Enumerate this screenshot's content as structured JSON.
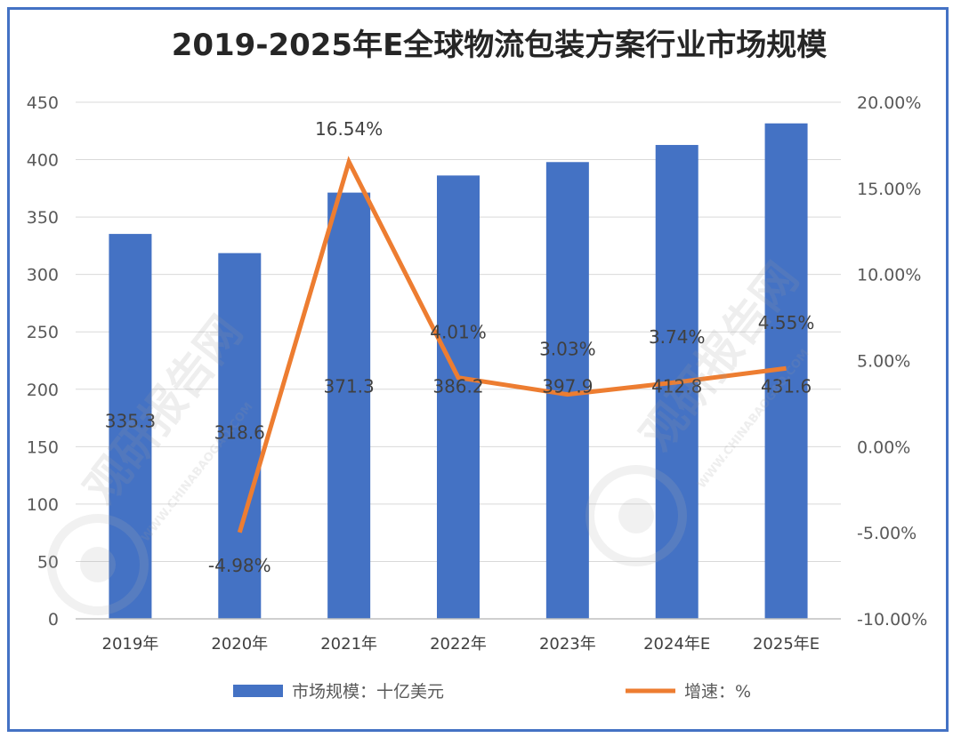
{
  "chart_data": {
    "type": "bar+line",
    "title": "2019-2025年E全球物流包装方案行业市场规模",
    "categories": [
      "2019年",
      "2020年",
      "2021年",
      "2022年",
      "2023年",
      "2024年E",
      "2025年E"
    ],
    "series": [
      {
        "name": "市场规模：十亿美元",
        "type": "bar",
        "axis": "left",
        "color": "#4472c4",
        "values": [
          335.3,
          318.6,
          371.3,
          386.2,
          397.9,
          412.8,
          431.6
        ],
        "labels": [
          "335.3",
          "318.6",
          "371.3",
          "386.2",
          "397.9",
          "412.8",
          "431.6"
        ]
      },
      {
        "name": "增速：%",
        "type": "line",
        "axis": "right",
        "color": "#ed7d31",
        "values": [
          null,
          -4.98,
          16.54,
          4.01,
          3.03,
          3.74,
          4.55
        ],
        "labels": [
          "",
          "-4.98%",
          "16.54%",
          "4.01%",
          "3.03%",
          "3.74%",
          "4.55%"
        ]
      }
    ],
    "y_left": {
      "min": 0,
      "max": 450,
      "step": 50,
      "ticks": [
        "0",
        "50",
        "100",
        "150",
        "200",
        "250",
        "300",
        "350",
        "400",
        "450"
      ]
    },
    "y_right": {
      "min": -10,
      "max": 20,
      "step": 5,
      "ticks": [
        "-10.00%",
        "-5.00%",
        "0.00%",
        "5.00%",
        "10.00%",
        "15.00%",
        "20.00%"
      ]
    },
    "grid": true,
    "legend": "bottom"
  },
  "watermark": {
    "text": "观研报告网",
    "text2": "WWW.CHINABAOGAO.COM"
  }
}
